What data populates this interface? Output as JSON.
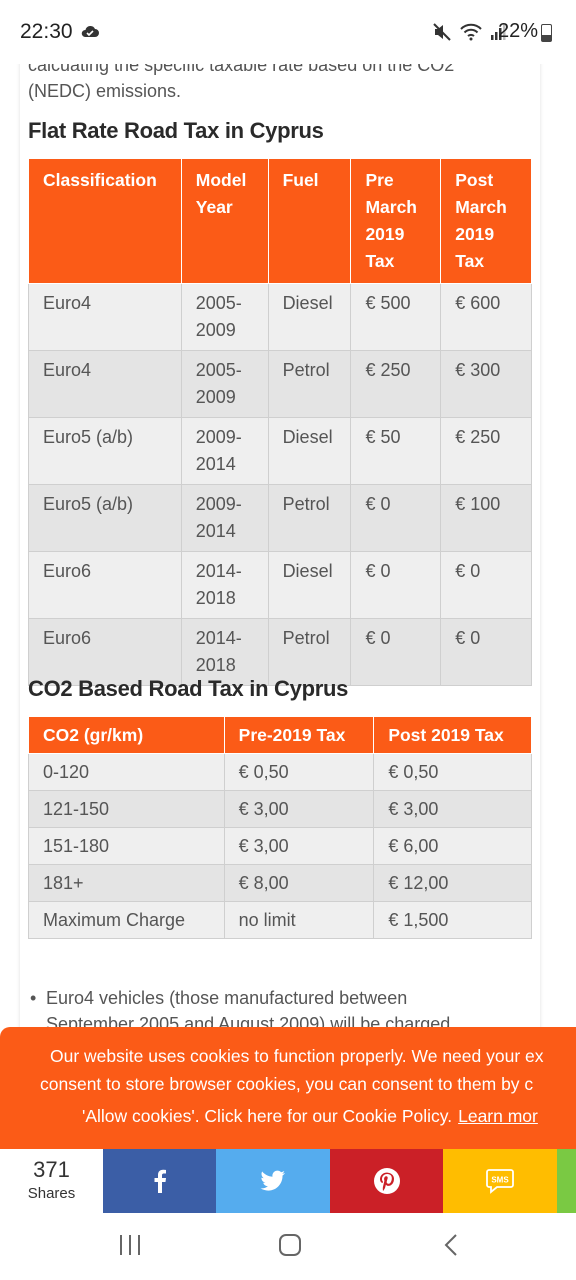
{
  "status": {
    "time": "22:30",
    "battery": "22%"
  },
  "icons": {
    "cloud": "cloud-icon",
    "mute": "mute-icon",
    "wifi": "wifi-icon",
    "signal": "signal-icon",
    "battery": "battery-icon"
  },
  "article": {
    "intro_line1": "calcuating the specific taxable rate based on the CO2",
    "intro_line2": "(NEDC) emissions.",
    "flat_title": "Flat Rate Road Tax in Cyprus",
    "flat_headers": [
      "Classification",
      "Model Year",
      "Fuel",
      "Pre March 2019 Tax",
      "Post March 2019 Tax"
    ],
    "flat_rows": [
      [
        "Euro4",
        "2005-2009",
        "Diesel",
        "€ 500",
        "€ 600"
      ],
      [
        "Euro4",
        "2005-2009",
        "Petrol",
        "€ 250",
        "€ 300"
      ],
      [
        "Euro5 (a/b)",
        "2009-2014",
        "Diesel",
        "€ 50",
        "€ 250"
      ],
      [
        "Euro5 (a/b)",
        "2009-2014",
        "Petrol",
        "€ 0",
        "€ 100"
      ],
      [
        "Euro6",
        "2014-2018",
        "Diesel",
        "€ 0",
        "€ 0"
      ],
      [
        "Euro6",
        "2014-2018",
        "Petrol",
        "€ 0",
        "€ 0"
      ]
    ],
    "co2_title": "CO2 Based Road Tax in Cyprus",
    "co2_headers": [
      "CO2 (gr/km)",
      "Pre-2019 Tax",
      "Post 2019 Tax"
    ],
    "co2_rows": [
      [
        "0-120",
        "€ 0,50",
        "€ 0,50"
      ],
      [
        "121-150",
        "€ 3,00",
        "€ 3,00"
      ],
      [
        "151-180",
        "€ 3,00",
        "€ 6,00"
      ],
      [
        "181+",
        "€ 8,00",
        "€ 12,00"
      ],
      [
        "Maximum Charge",
        "no limit",
        "€ 1,500"
      ]
    ],
    "bullet_line1": "Euro4 vehicles (those manufactured between",
    "bullet_line2": "September 2005 and August 2009) will be charged"
  },
  "cookie": {
    "line1": "Our website uses cookies to function properly. We need your ex",
    "line2": "consent to store browser cookies, you can consent to them by c",
    "line3": "'Allow cookies'. Click here for our Cookie Policy.",
    "learn_more": "Learn mor"
  },
  "share": {
    "count": "371",
    "label": "Shares",
    "sms_label": "SMS",
    "colors": {
      "facebook": "#3b5ea6",
      "twitter": "#55acee",
      "pinterest": "#cb2027",
      "sms": "#ffbd00",
      "more": "#7ac943"
    }
  },
  "theme": {
    "accent": "#fb5b17"
  }
}
